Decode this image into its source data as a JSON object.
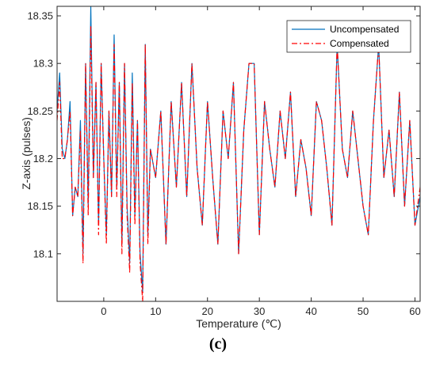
{
  "caption": "(c)",
  "chart_data": {
    "type": "line",
    "xlabel": "Temperature (℃)",
    "ylabel": "Z-axis (pulses)",
    "xlim": [
      -9,
      61
    ],
    "ylim": [
      18.05,
      18.36
    ],
    "xticks": [
      0,
      10,
      20,
      30,
      40,
      50,
      60
    ],
    "yticks": [
      18.1,
      18.15,
      18.2,
      18.25,
      18.3,
      18.35
    ],
    "grid": false,
    "legend": "top-right",
    "colors": {
      "Uncompensated": "#0072BD",
      "Compensated": "#FF0000"
    },
    "series": [
      {
        "name": "Uncompensated",
        "style": "solid",
        "x": [
          -9,
          -8.5,
          -8,
          -7.5,
          -7,
          -6.5,
          -6,
          -5.5,
          -5,
          -4.5,
          -4,
          -3.5,
          -3,
          -2.5,
          -2,
          -1.5,
          -1,
          -0.5,
          0,
          0.5,
          1,
          1.5,
          2,
          2.5,
          3,
          3.5,
          4,
          4.5,
          5,
          5.5,
          6,
          6.5,
          7,
          7.5,
          8,
          8.5,
          9,
          10,
          11,
          12,
          13,
          14,
          15,
          16,
          17,
          18,
          19,
          20,
          21,
          22,
          23,
          24,
          25,
          26,
          27,
          28,
          29,
          30,
          31,
          32,
          33,
          34,
          35,
          36,
          37,
          38,
          39,
          40,
          41,
          42,
          43,
          44,
          45,
          46,
          47,
          48,
          49,
          50,
          51,
          52,
          53,
          54,
          55,
          56,
          57,
          58,
          59,
          60,
          61
        ],
        "y": [
          18.25,
          18.29,
          18.21,
          18.2,
          18.22,
          18.26,
          18.14,
          18.17,
          18.16,
          18.24,
          18.1,
          18.3,
          18.15,
          18.36,
          18.18,
          18.28,
          18.13,
          18.3,
          18.2,
          18.12,
          18.25,
          18.16,
          18.33,
          18.17,
          18.28,
          18.11,
          18.3,
          18.15,
          18.09,
          18.29,
          18.14,
          18.24,
          18.1,
          18.06,
          18.32,
          18.12,
          18.21,
          18.18,
          18.25,
          18.11,
          18.26,
          18.17,
          18.28,
          18.16,
          18.3,
          18.19,
          18.13,
          18.26,
          18.18,
          18.11,
          18.25,
          18.2,
          18.28,
          18.1,
          18.23,
          18.3,
          18.3,
          18.12,
          18.26,
          18.21,
          18.17,
          18.25,
          18.2,
          18.27,
          18.16,
          18.22,
          18.19,
          18.14,
          18.26,
          18.24,
          18.19,
          18.13,
          18.32,
          18.21,
          18.18,
          18.25,
          18.2,
          18.15,
          18.12,
          18.24,
          18.32,
          18.18,
          18.23,
          18.16,
          18.27,
          18.15,
          18.24,
          18.13,
          18.16
        ]
      },
      {
        "name": "Compensated",
        "style": "dashed",
        "x": [
          -9,
          -8.5,
          -8,
          -7.5,
          -7,
          -6.5,
          -6,
          -5.5,
          -5,
          -4.5,
          -4,
          -3.5,
          -3,
          -2.5,
          -2,
          -1.5,
          -1,
          -0.5,
          0,
          0.5,
          1,
          1.5,
          2,
          2.5,
          3,
          3.5,
          4,
          4.5,
          5,
          5.5,
          6,
          6.5,
          7,
          7.5,
          8,
          8.5,
          9,
          10,
          11,
          12,
          13,
          14,
          15,
          16,
          17,
          18,
          19,
          20,
          21,
          22,
          23,
          24,
          25,
          26,
          27,
          28,
          29,
          30,
          31,
          32,
          33,
          34,
          35,
          36,
          37,
          38,
          39,
          40,
          41,
          42,
          43,
          44,
          45,
          46,
          47,
          48,
          49,
          50,
          51,
          52,
          53,
          54,
          55,
          56,
          57,
          58,
          59,
          60,
          61
        ],
        "y": [
          18.24,
          18.28,
          18.2,
          18.2,
          18.22,
          18.25,
          18.14,
          18.17,
          18.16,
          18.23,
          18.09,
          18.3,
          18.14,
          18.34,
          18.18,
          18.28,
          18.12,
          18.3,
          18.2,
          18.11,
          18.25,
          18.16,
          18.32,
          18.16,
          18.28,
          18.1,
          18.3,
          18.14,
          18.08,
          18.28,
          18.13,
          18.24,
          18.09,
          18.05,
          18.32,
          18.11,
          18.21,
          18.18,
          18.25,
          18.11,
          18.26,
          18.17,
          18.28,
          18.16,
          18.3,
          18.19,
          18.13,
          18.26,
          18.18,
          18.11,
          18.25,
          18.2,
          18.28,
          18.1,
          18.23,
          18.3,
          18.3,
          18.12,
          18.26,
          18.21,
          18.17,
          18.25,
          18.2,
          18.27,
          18.16,
          18.22,
          18.19,
          18.14,
          18.26,
          18.24,
          18.19,
          18.13,
          18.32,
          18.21,
          18.18,
          18.25,
          18.2,
          18.15,
          18.12,
          18.24,
          18.32,
          18.18,
          18.23,
          18.16,
          18.27,
          18.15,
          18.24,
          18.13,
          18.17
        ]
      }
    ]
  }
}
